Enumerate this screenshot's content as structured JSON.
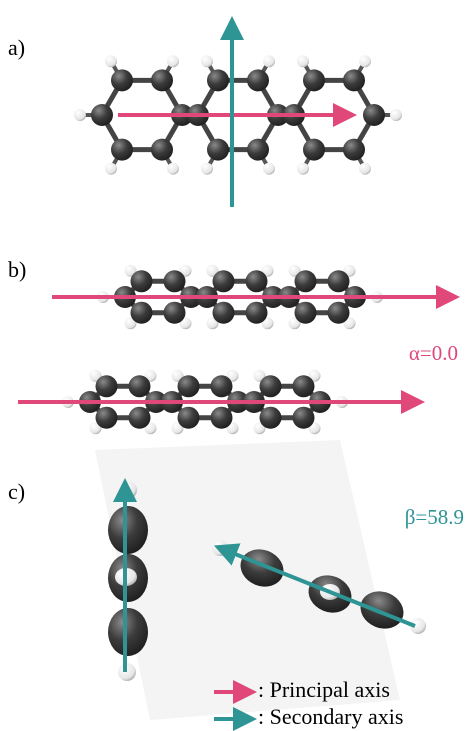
{
  "panels": [
    {
      "label": "a)"
    },
    {
      "label": "b)",
      "annotation": "α=0.0"
    },
    {
      "label": "c)",
      "annotation": "β=58.9"
    }
  ],
  "legend": [
    {
      "text": ": Principal axis"
    },
    {
      "text": ": Secondary axis"
    }
  ]
}
